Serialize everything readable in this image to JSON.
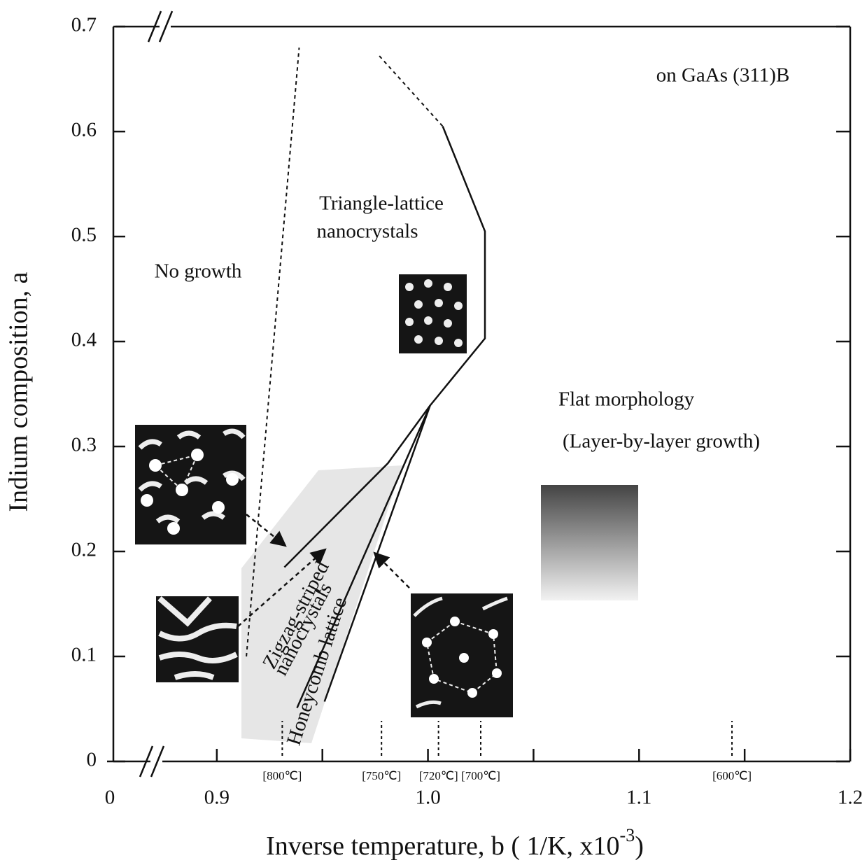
{
  "chart_data": {
    "type": "phase-diagram",
    "annotation_top": "on GaAs (311)B",
    "xlabel": "Inverse temperature, b  ( 1/K, x10",
    "xlabel_exponent": "-3",
    "xlabel_end": ")",
    "ylabel": "Indium composition, a",
    "xlim": [
      0.85,
      1.2
    ],
    "ylim": [
      0,
      0.7
    ],
    "x_break_label": "0",
    "xticks": [
      0.9,
      {
        "value": 1,
        "label": "1.0"
      },
      1.1,
      1.2
    ],
    "xminor_ticks": [
      0.95,
      1.05,
      1.15
    ],
    "yticks": [
      0,
      0.1,
      0.2,
      0.3,
      0.4,
      0.5,
      0.6,
      0.7
    ],
    "regions": [
      "No growth",
      "Triangle-lattice",
      "nanocrystals",
      "Flat morphology",
      "(Layer-by-layer growth)",
      "Zigzag-striped",
      "nanocrystals",
      "Honeycomb lattice"
    ],
    "boundaries": [
      {
        "style": "dashed",
        "x": [
          0.914,
          0.939
        ],
        "y": [
          0.1,
          0.68
        ]
      },
      {
        "style": "dashed",
        "x": [
          0.977,
          1.007
        ],
        "y": [
          0.672,
          0.605
        ]
      },
      {
        "style": "solid",
        "x": [
          1.007,
          1.027,
          1.027,
          1.001,
          0.981,
          0.932
        ],
        "y": [
          0.605,
          0.505,
          0.403,
          0.339,
          0.284,
          0.185
        ]
      },
      {
        "style": "solid",
        "x": [
          1.001,
          0.938
        ],
        "y": [
          0.339,
          0.051
        ]
      },
      {
        "style": "solid",
        "x": [
          1.001,
          0.951
        ],
        "y": [
          0.339,
          0.057
        ]
      }
    ],
    "temperatures": [
      {
        "label": "[800℃]",
        "x": 0.931
      },
      {
        "label": "[750℃]",
        "x": 0.978
      },
      {
        "label": "[720℃]",
        "x": 1.005
      },
      {
        "label": "[700℃]",
        "x": 1.025
      },
      {
        "label": "[600℃]",
        "x": 1.144
      }
    ]
  }
}
